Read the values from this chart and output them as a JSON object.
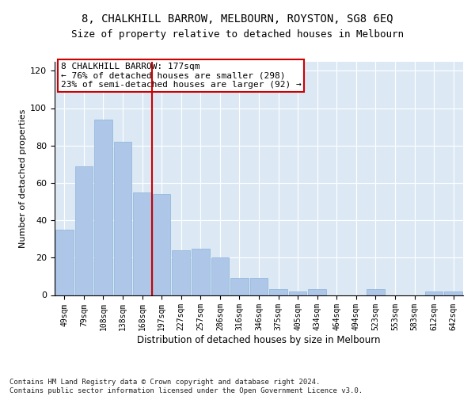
{
  "title": "8, CHALKHILL BARROW, MELBOURN, ROYSTON, SG8 6EQ",
  "subtitle": "Size of property relative to detached houses in Melbourn",
  "xlabel": "Distribution of detached houses by size in Melbourn",
  "ylabel": "Number of detached properties",
  "categories": [
    "49sqm",
    "79sqm",
    "108sqm",
    "138sqm",
    "168sqm",
    "197sqm",
    "227sqm",
    "257sqm",
    "286sqm",
    "316sqm",
    "346sqm",
    "375sqm",
    "405sqm",
    "434sqm",
    "464sqm",
    "494sqm",
    "523sqm",
    "553sqm",
    "583sqm",
    "612sqm",
    "642sqm"
  ],
  "values": [
    35,
    69,
    94,
    82,
    55,
    54,
    24,
    25,
    20,
    9,
    9,
    3,
    2,
    3,
    0,
    0,
    3,
    0,
    0,
    2,
    2
  ],
  "bar_color": "#aec6e8",
  "bar_edge_color": "#8ab4d8",
  "vline_color": "#cc0000",
  "annotation_text": "8 CHALKHILL BARROW: 177sqm\n← 76% of detached houses are smaller (298)\n23% of semi-detached houses are larger (92) →",
  "annotation_box_color": "#ffffff",
  "annotation_box_edge_color": "#cc0000",
  "ylim": [
    0,
    125
  ],
  "yticks": [
    0,
    20,
    40,
    60,
    80,
    100,
    120
  ],
  "grid_color": "#ffffff",
  "bg_color": "#dce9f5",
  "footer": "Contains HM Land Registry data © Crown copyright and database right 2024.\nContains public sector information licensed under the Open Government Licence v3.0.",
  "title_fontsize": 10,
  "subtitle_fontsize": 9,
  "xlabel_fontsize": 8.5,
  "ylabel_fontsize": 8,
  "tick_fontsize": 7,
  "annotation_fontsize": 8,
  "footer_fontsize": 6.5
}
